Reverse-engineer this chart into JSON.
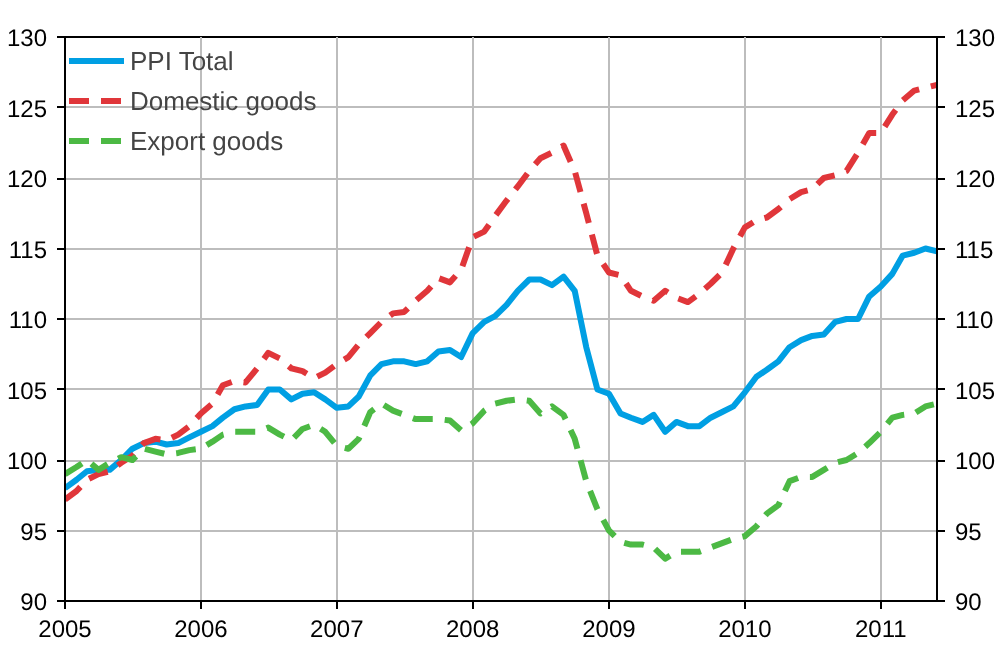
{
  "chart_data": {
    "type": "line",
    "x": [
      "2005-01",
      "2005-02",
      "2005-03",
      "2005-04",
      "2005-05",
      "2005-06",
      "2005-07",
      "2005-08",
      "2005-09",
      "2005-10",
      "2005-11",
      "2005-12",
      "2006-01",
      "2006-02",
      "2006-03",
      "2006-04",
      "2006-05",
      "2006-06",
      "2006-07",
      "2006-08",
      "2006-09",
      "2006-10",
      "2006-11",
      "2006-12",
      "2007-01",
      "2007-02",
      "2007-03",
      "2007-04",
      "2007-05",
      "2007-06",
      "2007-07",
      "2007-08",
      "2007-09",
      "2007-10",
      "2007-11",
      "2007-12",
      "2008-01",
      "2008-02",
      "2008-03",
      "2008-04",
      "2008-05",
      "2008-06",
      "2008-07",
      "2008-08",
      "2008-09",
      "2008-10",
      "2008-11",
      "2008-12",
      "2009-01",
      "2009-02",
      "2009-03",
      "2009-04",
      "2009-05",
      "2009-06",
      "2009-07",
      "2009-08",
      "2009-09",
      "2009-10",
      "2009-11",
      "2009-12",
      "2010-01",
      "2010-02",
      "2010-03",
      "2010-04",
      "2010-05",
      "2010-06",
      "2010-07",
      "2010-08",
      "2010-09",
      "2010-10",
      "2010-11",
      "2010-12",
      "2011-01",
      "2011-02",
      "2011-03",
      "2011-04",
      "2011-05",
      "2011-06"
    ],
    "series": [
      {
        "name": "PPI Total",
        "color": "#009fe3",
        "line_style": "solid",
        "values": [
          98,
          98.6,
          99.2,
          99.3,
          99.3,
          100,
          100.8,
          101.2,
          101.3,
          101.1,
          101.2,
          101.6,
          102,
          102.4,
          103,
          103.6,
          103.8,
          103.9,
          105,
          105,
          104.3,
          104.7,
          104.8,
          104.3,
          103.7,
          103.8,
          104.5,
          106,
          106.8,
          107,
          107,
          106.8,
          107,
          107.7,
          107.8,
          107.3,
          109,
          109.8,
          110.2,
          111,
          112,
          112.8,
          112.8,
          112.4,
          113,
          112,
          108,
          105,
          104.7,
          103.3,
          103,
          102.7,
          103.2,
          102,
          102.7,
          102.4,
          102.4,
          103,
          103.4,
          103.8,
          104.8,
          105.9,
          106.4,
          107,
          108,
          108.5,
          108.8,
          108.9,
          109.8,
          110,
          110,
          111.6,
          112.3,
          113.2,
          114.5,
          114.7,
          115,
          114.8
        ]
      },
      {
        "name": "Domestic goods",
        "color": "#e0363a",
        "line_style": "dashed",
        "values": [
          97.2,
          97.8,
          98.6,
          99,
          99.2,
          99.8,
          100.3,
          101.2,
          101.5,
          101.4,
          101.8,
          102.4,
          103.3,
          104,
          105.3,
          105.6,
          105.5,
          106.5,
          107.6,
          107.2,
          106.5,
          106.3,
          105.8,
          106.2,
          106.8,
          107.3,
          108.2,
          109,
          109.8,
          110.4,
          110.5,
          111.3,
          112,
          112.9,
          112.6,
          113.5,
          115.8,
          116.2,
          117.3,
          118.4,
          119.4,
          120.5,
          121.4,
          121.8,
          122.3,
          120.5,
          117.5,
          114.5,
          113.3,
          113.1,
          112,
          111.6,
          111.3,
          112,
          111.5,
          111.2,
          111.8,
          112.5,
          113.3,
          115,
          116.5,
          117,
          117.2,
          117.8,
          118.5,
          119,
          119.2,
          120,
          120.2,
          120.5,
          121.8,
          123.2,
          123.2,
          124.5,
          125.5,
          126.2,
          126.4,
          126.6
        ]
      },
      {
        "name": "Export goods",
        "color": "#4cb944",
        "line_style": "dashed",
        "values": [
          99,
          99.5,
          100,
          99.3,
          99.8,
          100.2,
          100,
          100.8,
          100.6,
          100.4,
          100.5,
          100.7,
          100.8,
          101.3,
          101.8,
          102,
          102,
          102,
          102.3,
          101.8,
          101.4,
          102.2,
          102.5,
          102,
          101,
          100.8,
          101.5,
          103.4,
          104,
          103.5,
          103.2,
          102.9,
          102.9,
          102.9,
          102.8,
          102.1,
          102.6,
          103.5,
          104,
          104.2,
          104.3,
          104.2,
          103.3,
          103.8,
          103.2,
          101.5,
          98.5,
          96.5,
          95,
          94.2,
          94,
          94,
          93.8,
          93,
          93.5,
          93.5,
          93.5,
          93.8,
          94.1,
          94.4,
          94.6,
          95.3,
          96.2,
          96.8,
          98.5,
          98.8,
          98.8,
          99.3,
          99.8,
          100,
          100.5,
          101.2,
          102,
          103,
          103.2,
          103.3,
          103.8,
          104
        ]
      }
    ],
    "xlim": [
      "2005-01",
      "2011-06"
    ],
    "xticks": [
      "2005",
      "2006",
      "2007",
      "2008",
      "2009",
      "2010",
      "2011"
    ],
    "ylim": [
      90,
      130
    ],
    "yticks": [
      90,
      95,
      100,
      105,
      110,
      115,
      120,
      125,
      130
    ],
    "y2lim": [
      90,
      130
    ],
    "y2ticks": [
      90,
      95,
      100,
      105,
      110,
      115,
      120,
      125,
      130
    ],
    "grid": true,
    "legend": "top left"
  }
}
